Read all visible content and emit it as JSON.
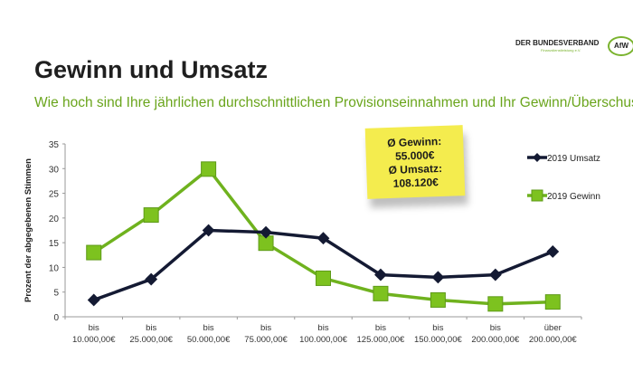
{
  "header": {
    "title": "Gewinn und Umsatz",
    "subtitle": "Wie hoch sind Ihre jährlichen durchschnittlichen Provisionseinnahmen und Ihr Gewinn/Überschuss?"
  },
  "logo": {
    "line1": "DER BUNDESVERBAND",
    "line2": "Finanzdienstleistung e.V.",
    "badge": "AfW"
  },
  "note": {
    "line1": "Ø Gewinn:",
    "line2": "55.000€",
    "line3": "Ø Umsatz:",
    "line4": "108.120€"
  },
  "chart_data": {
    "type": "line",
    "ylabel": "Prozent der abgegebenen Stimmen",
    "ylim": [
      0,
      35
    ],
    "yticks": [
      0,
      5,
      10,
      15,
      20,
      25,
      30,
      35
    ],
    "categories": [
      [
        "bis",
        "10.000,00€"
      ],
      [
        "bis",
        "25.000,00€"
      ],
      [
        "bis",
        "50.000,00€"
      ],
      [
        "bis",
        "75.000,00€"
      ],
      [
        "bis",
        "100.000,00€"
      ],
      [
        "bis",
        "125.000,00€"
      ],
      [
        "bis",
        "150.000,00€"
      ],
      [
        "bis",
        "200.000,00€"
      ],
      [
        "über",
        "200.000,00€"
      ]
    ],
    "legend_position": "right",
    "grid": false,
    "series": [
      {
        "name": "2019 Umsatz",
        "color": "#141a33",
        "marker": "diamond",
        "values": [
          3.4,
          7.6,
          17.5,
          17.1,
          15.9,
          8.5,
          8.0,
          8.5,
          13.2
        ]
      },
      {
        "name": "2019 Gewinn",
        "color": "#6fb21e",
        "marker": "square",
        "values": [
          13.0,
          20.6,
          29.9,
          14.9,
          7.8,
          4.7,
          3.4,
          2.6,
          3.0
        ]
      }
    ]
  }
}
